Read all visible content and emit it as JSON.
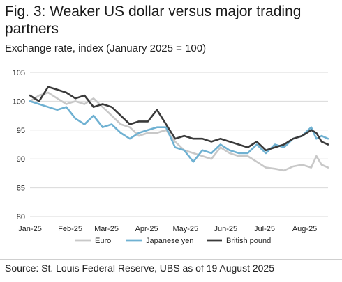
{
  "title": "Fig. 3: Weaker US dollar versus major trading partners",
  "subtitle": "Exchange rate, index (January 2025 = 100)",
  "source": "Source: St. Louis Federal Reserve, UBS as of 19 August 2025",
  "chart_data": {
    "type": "line",
    "x_range": [
      "2025-01-01",
      "2025-08-19"
    ],
    "x_ticks": [
      {
        "label": "Jan-25",
        "date": "2025-01-01"
      },
      {
        "label": "Feb-25",
        "date": "2025-02-01"
      },
      {
        "label": "Mar-25",
        "date": "2025-03-01"
      },
      {
        "label": "Apr-25",
        "date": "2025-04-01"
      },
      {
        "label": "May-25",
        "date": "2025-05-01"
      },
      {
        "label": "Jun-25",
        "date": "2025-06-01"
      },
      {
        "label": "Jul-25",
        "date": "2025-07-01"
      },
      {
        "label": "Aug-25",
        "date": "2025-08-01"
      }
    ],
    "ylim": [
      80,
      105
    ],
    "y_ticks": [
      80,
      85,
      90,
      95,
      100,
      105
    ],
    "grid": "horizontal",
    "legend_position": "bottom",
    "series": [
      {
        "name": "Euro",
        "color": "#c8c8c8",
        "points": [
          [
            "2025-01-01",
            100.0
          ],
          [
            "2025-01-08",
            101.0
          ],
          [
            "2025-01-15",
            101.5
          ],
          [
            "2025-01-22",
            100.5
          ],
          [
            "2025-01-29",
            99.5
          ],
          [
            "2025-02-05",
            100.0
          ],
          [
            "2025-02-12",
            99.5
          ],
          [
            "2025-02-19",
            100.5
          ],
          [
            "2025-02-26",
            99.0
          ],
          [
            "2025-03-05",
            97.5
          ],
          [
            "2025-03-12",
            96.0
          ],
          [
            "2025-03-19",
            95.5
          ],
          [
            "2025-03-26",
            94.0
          ],
          [
            "2025-04-02",
            94.5
          ],
          [
            "2025-04-09",
            94.5
          ],
          [
            "2025-04-16",
            95.0
          ],
          [
            "2025-04-23",
            93.0
          ],
          [
            "2025-04-30",
            91.5
          ],
          [
            "2025-05-07",
            91.0
          ],
          [
            "2025-05-14",
            90.5
          ],
          [
            "2025-05-21",
            90.0
          ],
          [
            "2025-05-28",
            92.0
          ],
          [
            "2025-06-04",
            91.0
          ],
          [
            "2025-06-11",
            90.5
          ],
          [
            "2025-06-18",
            90.5
          ],
          [
            "2025-06-25",
            89.5
          ],
          [
            "2025-07-02",
            88.5
          ],
          [
            "2025-07-09",
            88.3
          ],
          [
            "2025-07-16",
            88.0
          ],
          [
            "2025-07-23",
            88.7
          ],
          [
            "2025-07-30",
            89.0
          ],
          [
            "2025-08-06",
            88.5
          ],
          [
            "2025-08-10",
            90.5
          ],
          [
            "2025-08-14",
            89.0
          ],
          [
            "2025-08-19",
            88.5
          ]
        ]
      },
      {
        "name": "Japanese yen",
        "color": "#6fb1d2",
        "points": [
          [
            "2025-01-01",
            100.0
          ],
          [
            "2025-01-08",
            99.5
          ],
          [
            "2025-01-15",
            99.0
          ],
          [
            "2025-01-22",
            98.5
          ],
          [
            "2025-01-29",
            99.0
          ],
          [
            "2025-02-05",
            97.0
          ],
          [
            "2025-02-12",
            96.0
          ],
          [
            "2025-02-19",
            97.5
          ],
          [
            "2025-02-26",
            95.5
          ],
          [
            "2025-03-05",
            96.0
          ],
          [
            "2025-03-12",
            94.5
          ],
          [
            "2025-03-19",
            93.5
          ],
          [
            "2025-03-26",
            94.5
          ],
          [
            "2025-04-02",
            95.0
          ],
          [
            "2025-04-09",
            95.5
          ],
          [
            "2025-04-16",
            95.5
          ],
          [
            "2025-04-23",
            92.0
          ],
          [
            "2025-04-30",
            91.5
          ],
          [
            "2025-05-07",
            89.5
          ],
          [
            "2025-05-14",
            91.5
          ],
          [
            "2025-05-21",
            91.0
          ],
          [
            "2025-05-28",
            92.5
          ],
          [
            "2025-06-04",
            91.5
          ],
          [
            "2025-06-11",
            91.0
          ],
          [
            "2025-06-18",
            91.0
          ],
          [
            "2025-06-25",
            92.5
          ],
          [
            "2025-07-02",
            91.0
          ],
          [
            "2025-07-09",
            92.5
          ],
          [
            "2025-07-16",
            92.0
          ],
          [
            "2025-07-23",
            93.5
          ],
          [
            "2025-07-30",
            94.0
          ],
          [
            "2025-08-06",
            95.5
          ],
          [
            "2025-08-10",
            93.5
          ],
          [
            "2025-08-14",
            94.0
          ],
          [
            "2025-08-19",
            93.5
          ]
        ]
      },
      {
        "name": "British pound",
        "color": "#3a3a3a",
        "points": [
          [
            "2025-01-01",
            101.0
          ],
          [
            "2025-01-08",
            100.0
          ],
          [
            "2025-01-15",
            102.5
          ],
          [
            "2025-01-22",
            102.0
          ],
          [
            "2025-01-29",
            101.5
          ],
          [
            "2025-02-05",
            100.5
          ],
          [
            "2025-02-12",
            101.0
          ],
          [
            "2025-02-19",
            99.0
          ],
          [
            "2025-02-26",
            99.5
          ],
          [
            "2025-03-05",
            99.0
          ],
          [
            "2025-03-12",
            97.5
          ],
          [
            "2025-03-19",
            96.0
          ],
          [
            "2025-03-26",
            96.5
          ],
          [
            "2025-04-02",
            96.5
          ],
          [
            "2025-04-09",
            98.5
          ],
          [
            "2025-04-16",
            96.0
          ],
          [
            "2025-04-23",
            93.5
          ],
          [
            "2025-04-30",
            94.0
          ],
          [
            "2025-05-07",
            93.5
          ],
          [
            "2025-05-14",
            93.5
          ],
          [
            "2025-05-21",
            93.0
          ],
          [
            "2025-05-28",
            93.5
          ],
          [
            "2025-06-04",
            93.0
          ],
          [
            "2025-06-11",
            92.5
          ],
          [
            "2025-06-18",
            92.0
          ],
          [
            "2025-06-25",
            93.0
          ],
          [
            "2025-07-02",
            91.5
          ],
          [
            "2025-07-09",
            92.0
          ],
          [
            "2025-07-16",
            92.5
          ],
          [
            "2025-07-23",
            93.5
          ],
          [
            "2025-07-30",
            94.0
          ],
          [
            "2025-08-06",
            95.0
          ],
          [
            "2025-08-10",
            94.5
          ],
          [
            "2025-08-14",
            93.0
          ],
          [
            "2025-08-19",
            92.5
          ]
        ]
      }
    ]
  }
}
